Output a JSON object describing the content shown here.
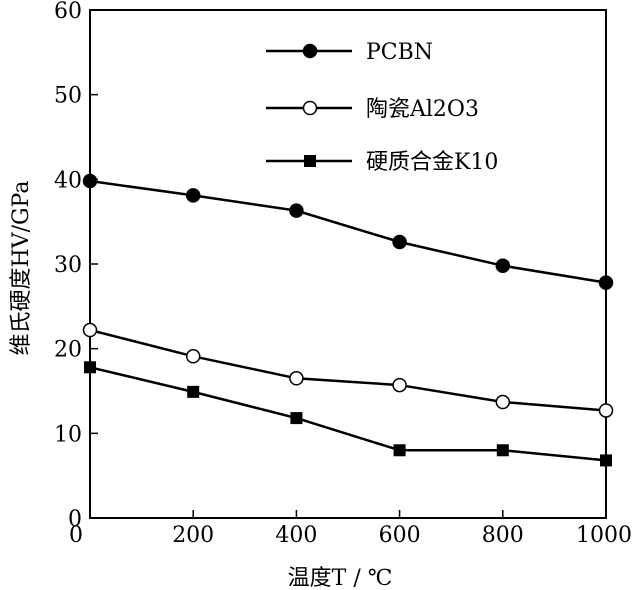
{
  "chart_data": {
    "type": "line",
    "title": "",
    "xlabel": "温度T / ℃",
    "ylabel": "维氏硬度HV/GPa",
    "xlim": [
      0,
      1000
    ],
    "ylim": [
      0,
      60
    ],
    "x_ticks": [
      0,
      200,
      400,
      600,
      800,
      1000
    ],
    "y_ticks": [
      0,
      10,
      20,
      30,
      40,
      50,
      60
    ],
    "x": [
      0,
      200,
      400,
      600,
      800,
      1000
    ],
    "legend_position": "top-right",
    "grid": false,
    "series": [
      {
        "name": "PCBN",
        "marker": "filled-circle",
        "values": [
          39.8,
          38.1,
          36.3,
          32.6,
          29.8,
          27.8
        ]
      },
      {
        "name": "陶瓷Al2O3",
        "marker": "open-circle",
        "values": [
          22.2,
          19.1,
          16.5,
          15.7,
          13.7,
          12.7
        ]
      },
      {
        "name": "硬质合金K10",
        "marker": "filled-square",
        "values": [
          17.8,
          14.9,
          11.8,
          8.0,
          8.0,
          6.8
        ]
      }
    ],
    "colors": {
      "line": "#000000",
      "background": "#ffffff"
    }
  }
}
